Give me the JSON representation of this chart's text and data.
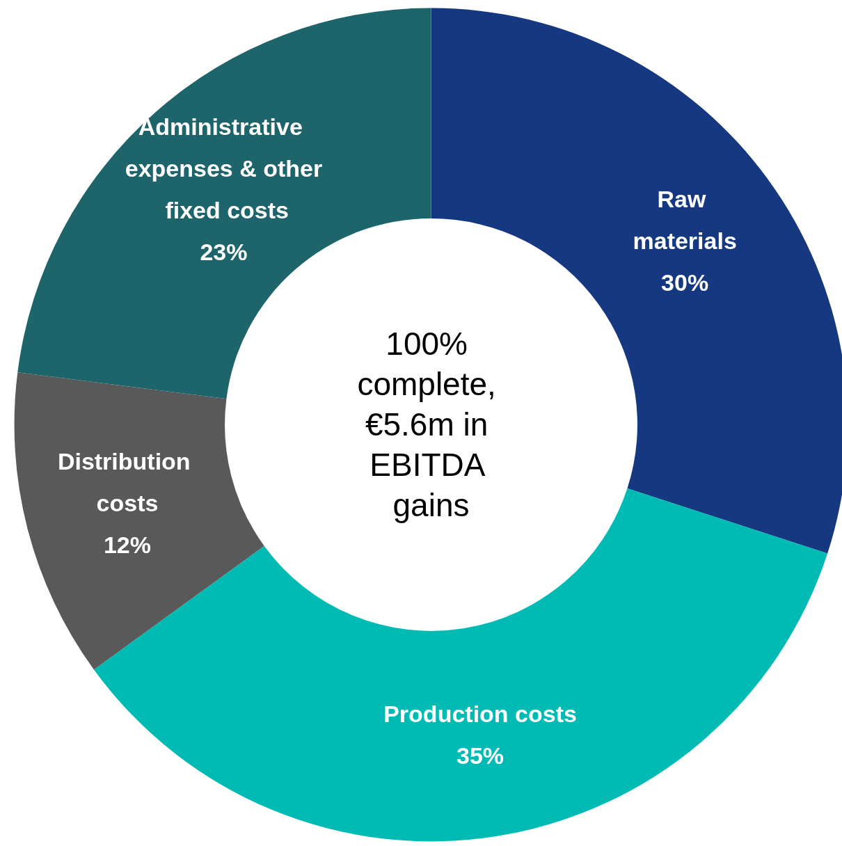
{
  "chart_data": {
    "type": "donut",
    "categories": [
      "Raw materials",
      "Production costs",
      "Distribution costs",
      "Administrative expenses & other fixed costs"
    ],
    "values": [
      30,
      35,
      12,
      23
    ],
    "colors": [
      "#163880",
      "#00bbb4",
      "#595959",
      "#1d646b"
    ],
    "value_labels": [
      "30%",
      "35%",
      "12%",
      "23%"
    ],
    "annotations": [
      "100% complete, €5.6m in EBITDA gains"
    ],
    "legend": false
  }
}
